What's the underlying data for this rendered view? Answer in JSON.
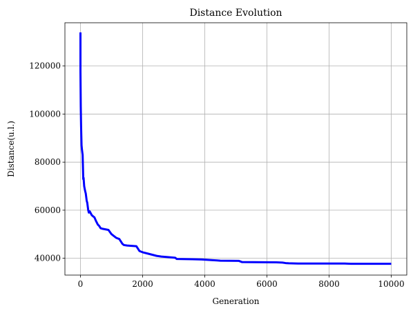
{
  "chart_data": {
    "type": "line",
    "title": "Distance Evolution",
    "xlabel": "Generation",
    "ylabel": "Distance(u.l.)",
    "xlim": [
      -500,
      10500
    ],
    "ylim": [
      33000,
      138000
    ],
    "xticks": [
      0,
      2000,
      4000,
      6000,
      8000,
      10000
    ],
    "yticks": [
      40000,
      60000,
      80000,
      100000,
      120000
    ],
    "xtick_labels": [
      "0",
      "2000",
      "4000",
      "6000",
      "8000",
      "10000"
    ],
    "ytick_labels": [
      "40000",
      "60000",
      "80000",
      "100000",
      "120000"
    ],
    "grid": true,
    "series": [
      {
        "name": "distance",
        "color": "#0000ff",
        "x": [
          0,
          0,
          10,
          20,
          35,
          50,
          70,
          90,
          100,
          120,
          150,
          170,
          200,
          220,
          250,
          270,
          300,
          360,
          400,
          450,
          500,
          520,
          560,
          600,
          650,
          700,
          900,
          1000,
          1050,
          1150,
          1250,
          1350,
          1400,
          1500,
          1800,
          1850,
          1900,
          2000,
          2150,
          2300,
          2450,
          2600,
          2800,
          3050,
          3100,
          3600,
          3900,
          4400,
          4500,
          5100,
          5200,
          6300,
          6500,
          6600,
          6700,
          7000,
          8500,
          8700,
          10000
        ],
        "y": [
          134000,
          118000,
          103000,
          95000,
          87000,
          85000,
          83000,
          73000,
          73500,
          70000,
          68000,
          67000,
          64000,
          63000,
          60000,
          59000,
          59500,
          58000,
          57500,
          57000,
          55500,
          55000,
          54000,
          53500,
          52500,
          52300,
          51800,
          50000,
          49500,
          48500,
          48000,
          46000,
          45500,
          45300,
          45000,
          44000,
          43000,
          42500,
          42000,
          41500,
          41000,
          40700,
          40500,
          40200,
          39700,
          39600,
          39500,
          39100,
          39000,
          38900,
          38400,
          38300,
          38200,
          38000,
          37900,
          37800,
          37800,
          37700,
          37700
        ]
      }
    ]
  }
}
